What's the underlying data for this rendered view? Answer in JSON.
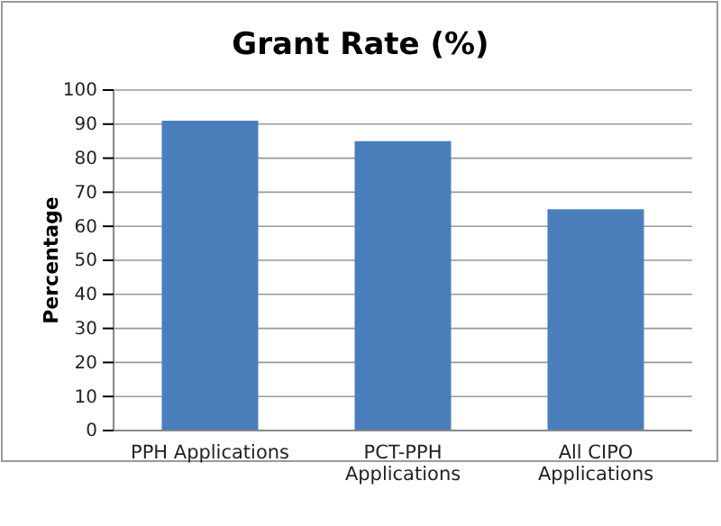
{
  "chart_data": {
    "type": "bar",
    "title": "Grant Rate (%)",
    "ylabel": "Percentage",
    "categories": [
      "PPH Applications",
      "PCT-PPH Applications",
      "All CIPO Applications"
    ],
    "values": [
      91,
      85,
      65
    ],
    "color": "#4a7ebb",
    "ylim": [
      0,
      100
    ],
    "yticks": [
      0,
      10,
      20,
      30,
      40,
      50,
      60,
      70,
      80,
      90,
      100
    ],
    "grid": "y"
  }
}
